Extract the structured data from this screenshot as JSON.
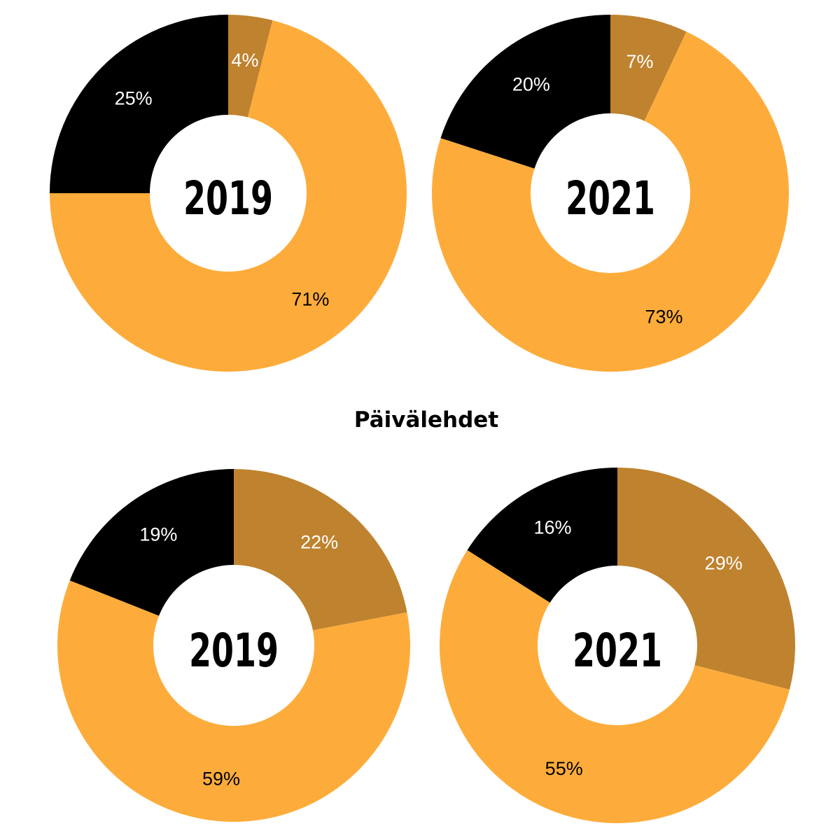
{
  "colors": {
    "orange": "#fdac3b",
    "brown": "#bf822e",
    "black": "#000000",
    "white": "#ffffff"
  },
  "section_title": "Päivälehdet",
  "chart_data": [
    {
      "type": "pie",
      "variant": "donut",
      "center_label": "2019",
      "series": [
        {
          "value": 4,
          "label": "4%",
          "color": "#bf822e"
        },
        {
          "value": 71,
          "label": "71%",
          "color": "#fdac3b"
        },
        {
          "value": 25,
          "label": "25%",
          "color": "#000000"
        }
      ]
    },
    {
      "type": "pie",
      "variant": "donut",
      "center_label": "2021",
      "series": [
        {
          "value": 7,
          "label": "7%",
          "color": "#bf822e"
        },
        {
          "value": 73,
          "label": "73%",
          "color": "#fdac3b"
        },
        {
          "value": 20,
          "label": "20%",
          "color": "#000000"
        }
      ]
    },
    {
      "type": "pie",
      "variant": "donut",
      "center_label": "2019",
      "series": [
        {
          "value": 22,
          "label": "22%",
          "color": "#bf822e"
        },
        {
          "value": 59,
          "label": "59%",
          "color": "#fdac3b"
        },
        {
          "value": 19,
          "label": "19%",
          "color": "#000000"
        }
      ]
    },
    {
      "type": "pie",
      "variant": "donut",
      "center_label": "2021",
      "series": [
        {
          "value": 29,
          "label": "29%",
          "color": "#bf822e"
        },
        {
          "value": 55,
          "label": "55%",
          "color": "#fdac3b"
        },
        {
          "value": 16,
          "label": "16%",
          "color": "#000000"
        }
      ]
    }
  ]
}
